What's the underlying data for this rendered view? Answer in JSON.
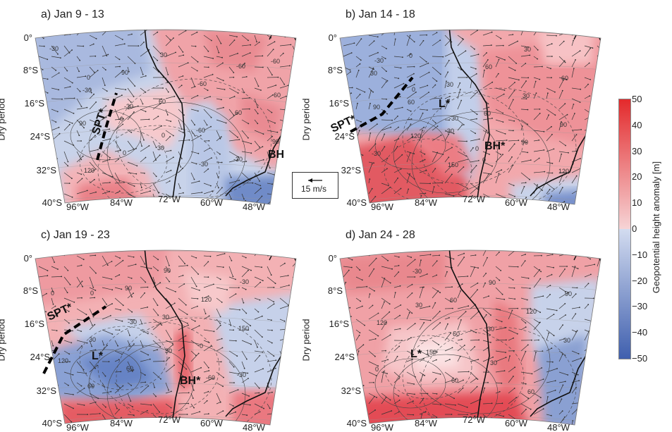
{
  "row_label": "Dry period",
  "lat_labels": [
    "0°",
    "8°S",
    "16°S",
    "24°S",
    "32°S",
    "40°S"
  ],
  "lon_labels": [
    "96°W",
    "84°W",
    "72°W",
    "60°W",
    "48°W"
  ],
  "panels": [
    {
      "title": "a) Jan 9 - 13",
      "annotations": [
        "SPT*",
        "BH"
      ],
      "contour_labels": [
        "-30",
        "0",
        "-30",
        "0",
        "-30",
        "-60",
        "60",
        "90",
        "0",
        "30",
        "-60",
        "60",
        "90",
        "120",
        "90",
        "60",
        "-60",
        "-30",
        "-60",
        "-30",
        "0",
        "30"
      ]
    },
    {
      "title": "b) Jan 14 - 18",
      "annotations": [
        "SPT*",
        "L*",
        "BH*"
      ],
      "contour_labels": [
        "-30",
        "0",
        "-30",
        "0",
        "30",
        "60",
        "90",
        "120",
        "150",
        "60",
        "30",
        "90",
        "-30",
        "0",
        "30",
        "60",
        "90",
        "120",
        "30",
        "60",
        "-30",
        "0"
      ]
    },
    {
      "title": "c) Jan 19 - 23",
      "annotations": [
        "SPT*",
        "L*",
        "BH*"
      ],
      "contour_labels": [
        "0",
        "-30",
        "30",
        "-60",
        "-30",
        "0",
        "30",
        "60",
        "90",
        "120",
        "150",
        "120",
        "60",
        "90",
        "30",
        "0",
        "-30"
      ]
    },
    {
      "title": "d) Jan 24 - 28",
      "annotations": [
        "L*"
      ],
      "contour_labels": [
        "30",
        "60",
        "30",
        "60",
        "90",
        "120",
        "150",
        "60",
        "90",
        "120",
        "30",
        "0",
        "-30",
        "60",
        "30"
      ]
    }
  ],
  "wind_legend": {
    "label": "15 m/s",
    "icon": "arrow-left-icon"
  },
  "colorbar": {
    "label": "Geopotential height anomaly [m]",
    "ticks": [
      "50",
      "40",
      "30",
      "20",
      "10",
      "0",
      "−10",
      "−20",
      "−30",
      "−40",
      "−50"
    ],
    "range": [
      -50,
      50
    ],
    "colors": {
      "max": "#e32a2c",
      "zero_pos": "#f6d4d6",
      "zero_neg": "#d3dcf0",
      "min": "#3f5fae"
    }
  }
}
